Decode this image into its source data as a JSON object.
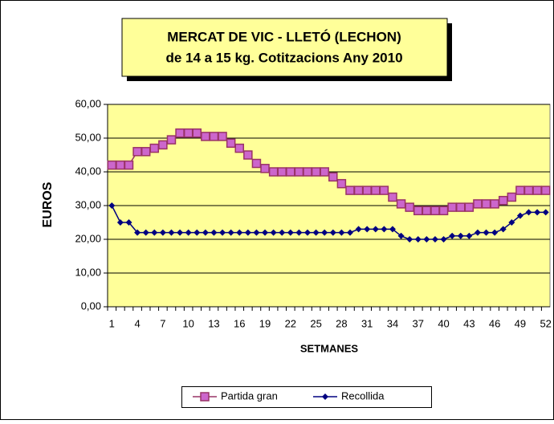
{
  "chart_data": {
    "type": "line",
    "title": "MERCAT DE VIC - LLETÓ (LECHON)",
    "subtitle": "de 14 a 15 kg.  Cotitzacions Any 2010",
    "x_label": "SETMANES",
    "y_label": "EUROS",
    "categories": [
      1,
      null,
      null,
      4,
      null,
      null,
      7,
      null,
      null,
      10,
      null,
      null,
      13,
      null,
      null,
      16,
      null,
      null,
      19,
      null,
      null,
      22,
      null,
      null,
      25,
      null,
      null,
      28,
      null,
      null,
      31,
      null,
      null,
      34,
      null,
      null,
      37,
      null,
      null,
      40,
      null,
      null,
      43,
      null,
      null,
      46,
      null,
      null,
      49,
      null,
      null,
      52
    ],
    "series": [
      {
        "name": "Partida gran",
        "color": "#993366",
        "marker": "square",
        "values": [
          42,
          42,
          42,
          46,
          46,
          47,
          48,
          49.5,
          51.5,
          51.5,
          51.5,
          50.5,
          50.5,
          50.5,
          48.5,
          47,
          45,
          42.5,
          41,
          40,
          40,
          40,
          40,
          40,
          40,
          40,
          38.5,
          36.5,
          34.5,
          34.5,
          34.5,
          34.5,
          34.5,
          32.5,
          30.5,
          29.5,
          28.5,
          28.5,
          28.5,
          28.5,
          29.5,
          29.5,
          29.5,
          30.5,
          30.5,
          30.5,
          31.5,
          32.5,
          34.5,
          34.5,
          34.5,
          34.5
        ]
      },
      {
        "name": "Recollida",
        "color": "#000080",
        "marker": "diamond",
        "values": [
          30,
          25,
          25,
          22,
          22,
          22,
          22,
          22,
          22,
          22,
          22,
          22,
          22,
          22,
          22,
          22,
          22,
          22,
          22,
          22,
          22,
          22,
          22,
          22,
          22,
          22,
          22,
          22,
          22,
          23,
          23,
          23,
          23,
          23,
          21,
          20,
          20,
          20,
          20,
          20,
          21,
          21,
          21,
          22,
          22,
          22,
          23,
          25,
          27,
          28,
          28,
          28
        ]
      }
    ],
    "ylim": [
      0,
      60
    ],
    "yticks": [
      {
        "value": 0,
        "label": "0,00"
      },
      {
        "value": 10,
        "label": "10,00"
      },
      {
        "value": 20,
        "label": "20,00"
      },
      {
        "value": 30,
        "label": "30,00"
      },
      {
        "value": 40,
        "label": "40,00"
      },
      {
        "value": 50,
        "label": "50,00"
      },
      {
        "value": 60,
        "label": "60,00"
      }
    ],
    "grid": true,
    "background": "#ffff99",
    "legend": "bottom"
  }
}
